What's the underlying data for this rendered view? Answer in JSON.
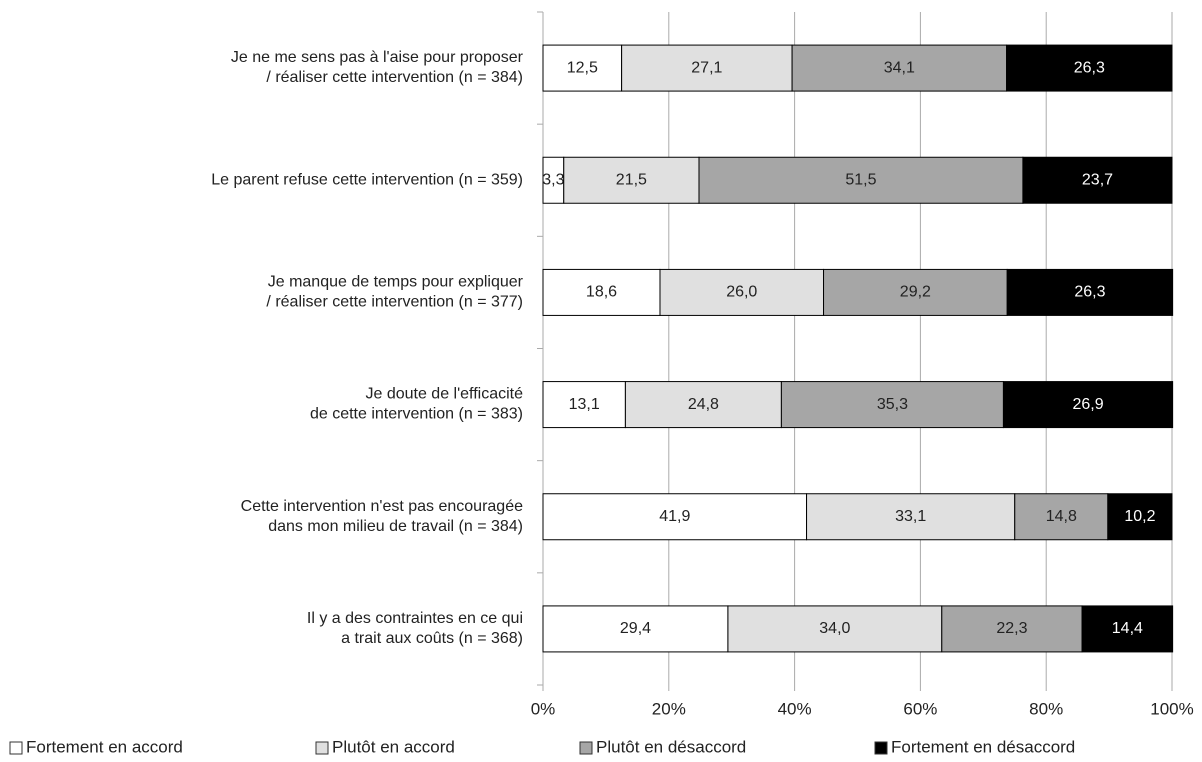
{
  "chart_data": {
    "type": "stacked_barh",
    "categories": [
      "Je ne me sens pas à l'aise pour proposer\n/ réaliser cette intervention (n = 384)",
      "Le parent refuse cette intervention (n = 359)",
      "Je manque de temps pour expliquer\n/ réaliser cette intervention (n = 377)",
      "Je doute de l'efficacité\nde cette intervention (n = 383)",
      "Cette intervention n'est pas encouragée\ndans mon milieu de travail (n = 384)",
      "Il y a des contraintes en ce qui\na trait aux coûts (n = 368)"
    ],
    "series": [
      {
        "name": "Fortement en accord",
        "color": "#ffffff",
        "values": [
          12.5,
          3.3,
          18.6,
          13.1,
          41.9,
          29.4
        ],
        "value_labels": [
          "12,5",
          "3,3",
          "18,6",
          "13,1",
          "41,9",
          "29,4"
        ]
      },
      {
        "name": "Plutôt en accord",
        "color": "#e0e0e0",
        "values": [
          27.1,
          21.5,
          26.0,
          24.8,
          33.1,
          34.0
        ],
        "value_labels": [
          "27,1",
          "21,5",
          "26,0",
          "24,8",
          "33,1",
          "34,0"
        ]
      },
      {
        "name": "Plutôt en désaccord",
        "color": "#a6a6a6",
        "values": [
          34.1,
          51.5,
          29.2,
          35.3,
          14.8,
          22.3
        ],
        "value_labels": [
          "34,1",
          "51,5",
          "29,2",
          "35,3",
          "14,8",
          "22,3"
        ]
      },
      {
        "name": "Fortement en désaccord",
        "color": "#000000",
        "values": [
          26.3,
          23.7,
          26.3,
          26.9,
          10.2,
          14.4
        ],
        "value_labels": [
          "26,3",
          "23,7",
          "26,3",
          "26,9",
          "10,2",
          "14,4"
        ]
      }
    ],
    "xlim": [
      0,
      100
    ],
    "xticks": [
      {
        "value": 0,
        "label": "0%"
      },
      {
        "value": 20,
        "label": "20%"
      },
      {
        "value": 40,
        "label": "40%"
      },
      {
        "value": 60,
        "label": "60%"
      },
      {
        "value": 80,
        "label": "80%"
      },
      {
        "value": 100,
        "label": "100%"
      }
    ],
    "grid": true,
    "legend": "bottom"
  }
}
